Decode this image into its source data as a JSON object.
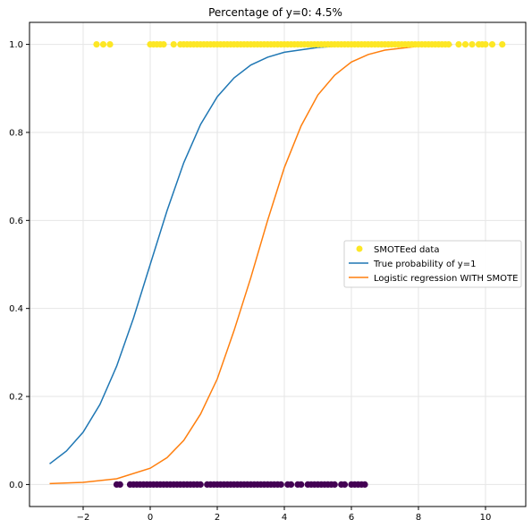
{
  "chart_data": {
    "type": "scatter",
    "title": "Percentage of y=0: 4.5%",
    "xlabel": "",
    "ylabel": "",
    "xlim": [
      -3.6,
      11.2
    ],
    "ylim": [
      -0.05,
      1.05
    ],
    "x_ticks": [
      -2,
      0,
      2,
      4,
      6,
      8,
      10
    ],
    "y_ticks": [
      0.0,
      0.2,
      0.4,
      0.6,
      0.8,
      1.0
    ],
    "x_tick_labels": [
      "−2",
      "0",
      "2",
      "4",
      "6",
      "8",
      "10"
    ],
    "y_tick_labels": [
      "0.0",
      "0.2",
      "0.4",
      "0.6",
      "0.8",
      "1.0"
    ],
    "grid": true,
    "legend_position": "center-right",
    "series": [
      {
        "name": "SMOTEed data",
        "kind": "scatter",
        "colors": {
          "y1": "#fde725",
          "y0": "#440154"
        },
        "points_y1_x": [
          -1.6,
          -1.4,
          -1.2,
          0.0,
          0.1,
          0.2,
          0.3,
          0.4,
          0.7,
          0.9,
          1.0,
          1.1,
          1.2,
          1.3,
          1.4,
          1.5,
          1.6,
          1.7,
          1.8,
          1.9,
          2.0,
          2.1,
          2.2,
          2.3,
          2.4,
          2.5,
          2.6,
          2.7,
          2.8,
          2.9,
          3.0,
          3.1,
          3.2,
          3.3,
          3.4,
          3.5,
          3.6,
          3.7,
          3.8,
          3.9,
          4.0,
          4.1,
          4.2,
          4.3,
          4.4,
          4.5,
          4.6,
          4.7,
          4.8,
          4.9,
          5.0,
          5.1,
          5.2,
          5.3,
          5.4,
          5.5,
          5.6,
          5.7,
          5.8,
          5.9,
          6.0,
          6.1,
          6.2,
          6.3,
          6.4,
          6.5,
          6.6,
          6.7,
          6.8,
          6.9,
          7.0,
          7.1,
          7.2,
          7.3,
          7.4,
          7.5,
          7.6,
          7.7,
          7.8,
          7.9,
          8.0,
          8.1,
          8.2,
          8.3,
          8.4,
          8.5,
          8.6,
          8.7,
          8.8,
          8.9,
          9.2,
          9.4,
          9.6,
          9.8,
          9.9,
          10.0,
          10.2,
          10.5
        ],
        "points_y0_x": [
          -1.0,
          -0.9,
          -0.6,
          -0.5,
          -0.4,
          -0.3,
          -0.2,
          -0.1,
          0.0,
          0.1,
          0.2,
          0.3,
          0.4,
          0.5,
          0.6,
          0.7,
          0.8,
          0.9,
          1.0,
          1.1,
          1.2,
          1.3,
          1.4,
          1.5,
          1.7,
          1.8,
          1.9,
          2.0,
          2.1,
          2.2,
          2.3,
          2.4,
          2.5,
          2.6,
          2.7,
          2.8,
          2.9,
          3.0,
          3.1,
          3.2,
          3.3,
          3.4,
          3.5,
          3.6,
          3.7,
          3.8,
          3.9,
          4.1,
          4.2,
          4.4,
          4.5,
          4.7,
          4.8,
          4.9,
          5.0,
          5.1,
          5.2,
          5.3,
          5.4,
          5.5,
          5.7,
          5.8,
          6.0,
          6.1,
          6.2,
          6.3,
          6.4
        ]
      },
      {
        "name": "True probability of y=1",
        "kind": "line",
        "color": "#1f77b4",
        "x": [
          -3.0,
          -2.5,
          -2.0,
          -1.5,
          -1.0,
          -0.5,
          0.0,
          0.5,
          1.0,
          1.5,
          2.0,
          2.5,
          3.0,
          3.5,
          4.0,
          5.0,
          6.0,
          7.0,
          8.0,
          9.0
        ],
        "y": [
          0.047,
          0.076,
          0.119,
          0.182,
          0.269,
          0.378,
          0.5,
          0.622,
          0.731,
          0.818,
          0.881,
          0.924,
          0.953,
          0.971,
          0.982,
          0.993,
          0.998,
          0.999,
          1.0,
          1.0
        ]
      },
      {
        "name": "Logistic regression WITH SMOTE",
        "kind": "line",
        "color": "#ff7f0e",
        "x": [
          -3.0,
          -2.0,
          -1.0,
          0.0,
          0.5,
          1.0,
          1.5,
          2.0,
          2.5,
          3.0,
          3.5,
          4.0,
          4.5,
          5.0,
          5.5,
          6.0,
          6.5,
          7.0,
          8.0,
          9.0
        ],
        "y": [
          0.002,
          0.005,
          0.013,
          0.037,
          0.061,
          0.1,
          0.16,
          0.24,
          0.35,
          0.47,
          0.6,
          0.72,
          0.815,
          0.885,
          0.93,
          0.96,
          0.977,
          0.987,
          0.996,
          0.999
        ]
      }
    ]
  }
}
